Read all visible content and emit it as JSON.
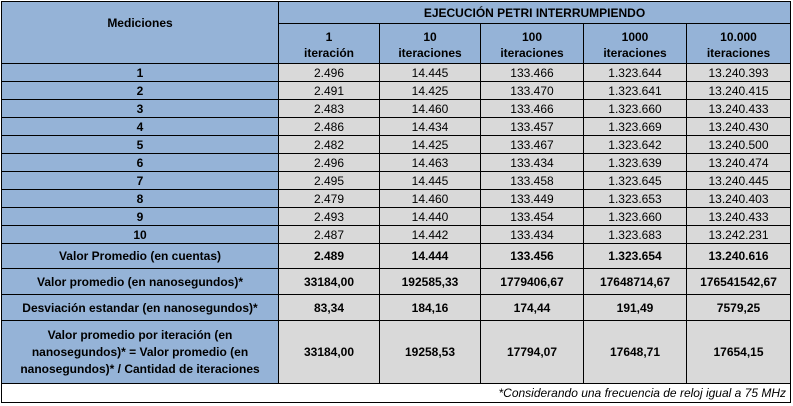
{
  "header": {
    "title": "EJECUCIÓN PETRI INTERRUMPIENDO",
    "mediciones": "Mediciones",
    "columns": [
      {
        "line1": "1",
        "line2": "iteración"
      },
      {
        "line1": "10",
        "line2": "iteraciones"
      },
      {
        "line1": "100",
        "line2": "iteraciones"
      },
      {
        "line1": "1000",
        "line2": "iteraciones"
      },
      {
        "line1": "10.000",
        "line2": "iteraciones"
      }
    ]
  },
  "rows": [
    {
      "label": "1",
      "values": [
        "2.496",
        "14.445",
        "133.466",
        "1.323.644",
        "13.240.393"
      ]
    },
    {
      "label": "2",
      "values": [
        "2.491",
        "14.425",
        "133.470",
        "1.323.641",
        "13.240.415"
      ]
    },
    {
      "label": "3",
      "values": [
        "2.483",
        "14.460",
        "133.466",
        "1.323.660",
        "13.240.433"
      ]
    },
    {
      "label": "4",
      "values": [
        "2.486",
        "14.434",
        "133.457",
        "1.323.669",
        "13.240.430"
      ]
    },
    {
      "label": "5",
      "values": [
        "2.482",
        "14.425",
        "133.467",
        "1.323.642",
        "13.240.500"
      ]
    },
    {
      "label": "6",
      "values": [
        "2.496",
        "14.463",
        "133.434",
        "1.323.639",
        "13.240.474"
      ]
    },
    {
      "label": "7",
      "values": [
        "2.495",
        "14.445",
        "133.458",
        "1.323.645",
        "13.240.445"
      ]
    },
    {
      "label": "8",
      "values": [
        "2.479",
        "14.460",
        "133.449",
        "1.323.653",
        "13.240.403"
      ]
    },
    {
      "label": "9",
      "values": [
        "2.493",
        "14.440",
        "133.454",
        "1.323.660",
        "13.240.433"
      ]
    },
    {
      "label": "10",
      "values": [
        "2.487",
        "14.442",
        "133.434",
        "1.323.683",
        "13.242.231"
      ]
    }
  ],
  "summary": {
    "promedio_cuentas": {
      "label": "Valor Promedio (en cuentas)",
      "values": [
        "2.489",
        "14.444",
        "133.456",
        "1.323.654",
        "13.240.616"
      ]
    },
    "promedio_ns": {
      "label": "Valor promedio (en nanosegundos)*",
      "values": [
        "33184,00",
        "192585,33",
        "1779406,67",
        "17648714,67",
        "176541542,67"
      ]
    },
    "desviacion": {
      "label": "Desviación estandar (en nanosegundos)*",
      "values": [
        "83,34",
        "184,16",
        "174,44",
        "191,49",
        "7579,25"
      ]
    },
    "por_iteracion": {
      "label_lines": [
        "Valor promedio por iteración (en",
        "nanosegundos)* = Valor promedio (en",
        "nanosegundos)* / Cantidad de iteraciones"
      ],
      "values": [
        "33184,00",
        "19258,53",
        "17794,07",
        "17648,71",
        "17654,15"
      ]
    }
  },
  "note": "*Considerando una frecuencia de reloj igual a 75 MHz",
  "colors": {
    "header_blue": "#95b3d7",
    "cell_gray": "#d9d9d9"
  }
}
